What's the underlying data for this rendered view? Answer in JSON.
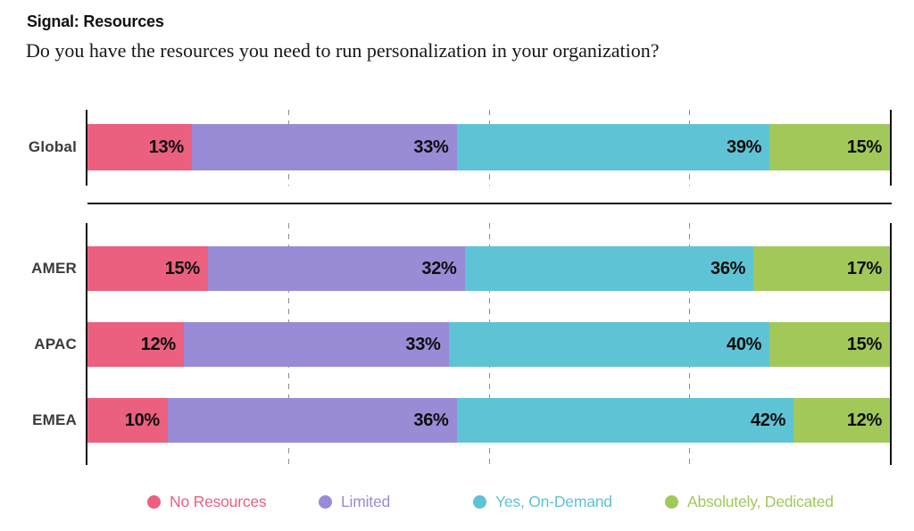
{
  "header": {
    "title": "Signal: Resources",
    "subtitle": "Do you have the resources you need to run personalization in your organization?"
  },
  "chart_data": {
    "type": "bar",
    "variant": "horizontal-stacked",
    "title": "Signal: Resources",
    "question": "Do you have the resources you need to run personalization in your organization?",
    "categories": [
      "Global",
      "AMER",
      "APAC",
      "EMEA"
    ],
    "series": [
      {
        "name": "No Resources",
        "color": "#EB607F",
        "values": [
          13,
          15,
          12,
          10
        ]
      },
      {
        "name": "Limited",
        "color": "#998BD6",
        "values": [
          33,
          32,
          33,
          36
        ]
      },
      {
        "name": "Yes, On-Demand",
        "color": "#5EC3D5",
        "values": [
          39,
          36,
          40,
          42
        ]
      },
      {
        "name": "Absolutely, Dedicated",
        "color": "#A2C85A",
        "values": [
          15,
          17,
          15,
          12
        ]
      }
    ],
    "value_suffix": "%",
    "xlim": [
      0,
      100
    ],
    "gridlines_percent": [
      25,
      50,
      75
    ],
    "grid_style": "dashed-vertical",
    "legend_position": "bottom",
    "group_separator_after": "Global"
  },
  "colors": {
    "axis": "#111111",
    "gridline": "#8c8c8c",
    "value_label": "#0d0d0d",
    "row_label": "#3b3b3b"
  }
}
